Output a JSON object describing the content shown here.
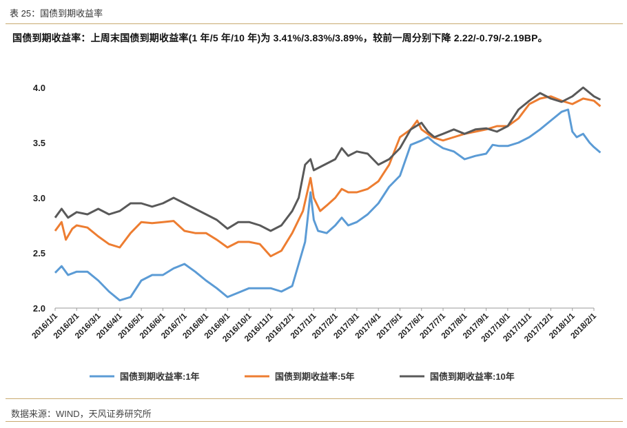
{
  "caption": "表 25：国债到期收益率",
  "headline": "国债到期收益率：上周末国债到期收益率(1 年/5 年/10 年)为 3.41%/3.83%/3.89%，较前一周分别下降 2.22/-0.79/-2.19BP。",
  "source": "数据来源：WIND，天风证券研究所",
  "chart_data": {
    "type": "line",
    "title": "",
    "xlabel": "",
    "ylabel": "",
    "ylim": [
      2.0,
      4.0
    ],
    "yticks": [
      "2.0",
      "2.5",
      "3.0",
      "3.5",
      "4.0"
    ],
    "x_categories": [
      "2016/1/1",
      "2016/2/1",
      "2016/3/1",
      "2016/4/1",
      "2016/5/1",
      "2016/6/1",
      "2016/7/1",
      "2016/8/1",
      "2016/9/1",
      "2016/10/1",
      "2016/11/1",
      "2016/12/1",
      "2017/1/1",
      "2017/2/1",
      "2017/3/1",
      "2017/4/1",
      "2017/5/1",
      "2017/6/1",
      "2017/7/1",
      "2017/8/1",
      "2017/9/1",
      "2017/10/1",
      "2017/11/1",
      "2017/12/1",
      "2018/1/1",
      "2018/2/1"
    ],
    "grid": false,
    "legend_position": "bottom",
    "series": [
      {
        "name": "国债到期收益率:1年",
        "color": "#5b9bd5",
        "points": [
          [
            0,
            2.32
          ],
          [
            0.3,
            2.38
          ],
          [
            0.6,
            2.3
          ],
          [
            1,
            2.33
          ],
          [
            1.5,
            2.33
          ],
          [
            2,
            2.25
          ],
          [
            2.5,
            2.15
          ],
          [
            3,
            2.07
          ],
          [
            3.5,
            2.1
          ],
          [
            4,
            2.25
          ],
          [
            4.5,
            2.3
          ],
          [
            5,
            2.3
          ],
          [
            5.5,
            2.36
          ],
          [
            6,
            2.4
          ],
          [
            6.5,
            2.33
          ],
          [
            7,
            2.25
          ],
          [
            7.5,
            2.18
          ],
          [
            8,
            2.1
          ],
          [
            8.5,
            2.14
          ],
          [
            9,
            2.18
          ],
          [
            9.5,
            2.18
          ],
          [
            10,
            2.18
          ],
          [
            10.5,
            2.15
          ],
          [
            11,
            2.2
          ],
          [
            11.3,
            2.4
          ],
          [
            11.6,
            2.6
          ],
          [
            11.85,
            3.05
          ],
          [
            12,
            2.8
          ],
          [
            12.2,
            2.7
          ],
          [
            12.6,
            2.68
          ],
          [
            13,
            2.75
          ],
          [
            13.3,
            2.82
          ],
          [
            13.6,
            2.75
          ],
          [
            14,
            2.78
          ],
          [
            14.5,
            2.85
          ],
          [
            15,
            2.95
          ],
          [
            15.5,
            3.1
          ],
          [
            16,
            3.2
          ],
          [
            16.5,
            3.48
          ],
          [
            17,
            3.52
          ],
          [
            17.3,
            3.55
          ],
          [
            17.6,
            3.5
          ],
          [
            18,
            3.45
          ],
          [
            18.5,
            3.42
          ],
          [
            19,
            3.35
          ],
          [
            19.5,
            3.38
          ],
          [
            20,
            3.4
          ],
          [
            20.3,
            3.48
          ],
          [
            20.6,
            3.47
          ],
          [
            21,
            3.47
          ],
          [
            21.5,
            3.5
          ],
          [
            22,
            3.55
          ],
          [
            22.5,
            3.62
          ],
          [
            23,
            3.7
          ],
          [
            23.5,
            3.78
          ],
          [
            23.8,
            3.8
          ],
          [
            24,
            3.6
          ],
          [
            24.2,
            3.55
          ],
          [
            24.5,
            3.58
          ],
          [
            24.8,
            3.5
          ],
          [
            25,
            3.46
          ],
          [
            25.3,
            3.41
          ]
        ]
      },
      {
        "name": "国债到期收益率:5年",
        "color": "#ed7d31",
        "points": [
          [
            0,
            2.7
          ],
          [
            0.3,
            2.78
          ],
          [
            0.5,
            2.62
          ],
          [
            0.8,
            2.72
          ],
          [
            1,
            2.75
          ],
          [
            1.5,
            2.73
          ],
          [
            2,
            2.65
          ],
          [
            2.5,
            2.58
          ],
          [
            3,
            2.55
          ],
          [
            3.5,
            2.68
          ],
          [
            4,
            2.78
          ],
          [
            4.5,
            2.77
          ],
          [
            5,
            2.78
          ],
          [
            5.5,
            2.79
          ],
          [
            6,
            2.7
          ],
          [
            6.5,
            2.68
          ],
          [
            7,
            2.68
          ],
          [
            7.5,
            2.62
          ],
          [
            8,
            2.55
          ],
          [
            8.5,
            2.6
          ],
          [
            9,
            2.6
          ],
          [
            9.5,
            2.58
          ],
          [
            10,
            2.47
          ],
          [
            10.5,
            2.52
          ],
          [
            11,
            2.68
          ],
          [
            11.5,
            2.88
          ],
          [
            11.85,
            3.18
          ],
          [
            12,
            3.0
          ],
          [
            12.3,
            2.88
          ],
          [
            12.6,
            2.93
          ],
          [
            13,
            3.0
          ],
          [
            13.3,
            3.08
          ],
          [
            13.6,
            3.05
          ],
          [
            14,
            3.05
          ],
          [
            14.5,
            3.08
          ],
          [
            15,
            3.15
          ],
          [
            15.5,
            3.3
          ],
          [
            16,
            3.55
          ],
          [
            16.5,
            3.62
          ],
          [
            16.8,
            3.7
          ],
          [
            17,
            3.62
          ],
          [
            17.5,
            3.55
          ],
          [
            18,
            3.52
          ],
          [
            18.5,
            3.55
          ],
          [
            19,
            3.58
          ],
          [
            19.5,
            3.6
          ],
          [
            20,
            3.62
          ],
          [
            20.5,
            3.65
          ],
          [
            21,
            3.65
          ],
          [
            21.5,
            3.72
          ],
          [
            22,
            3.85
          ],
          [
            22.5,
            3.9
          ],
          [
            23,
            3.92
          ],
          [
            23.5,
            3.88
          ],
          [
            24,
            3.85
          ],
          [
            24.5,
            3.9
          ],
          [
            25,
            3.88
          ],
          [
            25.3,
            3.83
          ]
        ]
      },
      {
        "name": "国债到期收益率:10年",
        "color": "#595959",
        "points": [
          [
            0,
            2.82
          ],
          [
            0.3,
            2.9
          ],
          [
            0.6,
            2.82
          ],
          [
            1,
            2.87
          ],
          [
            1.5,
            2.85
          ],
          [
            2,
            2.9
          ],
          [
            2.5,
            2.85
          ],
          [
            3,
            2.88
          ],
          [
            3.5,
            2.95
          ],
          [
            4,
            2.95
          ],
          [
            4.5,
            2.92
          ],
          [
            5,
            2.95
          ],
          [
            5.5,
            3.0
          ],
          [
            6,
            2.95
          ],
          [
            6.5,
            2.9
          ],
          [
            7,
            2.85
          ],
          [
            7.5,
            2.8
          ],
          [
            8,
            2.72
          ],
          [
            8.5,
            2.78
          ],
          [
            9,
            2.78
          ],
          [
            9.5,
            2.75
          ],
          [
            10,
            2.7
          ],
          [
            10.5,
            2.75
          ],
          [
            11,
            2.88
          ],
          [
            11.3,
            3.0
          ],
          [
            11.6,
            3.3
          ],
          [
            11.85,
            3.35
          ],
          [
            12,
            3.25
          ],
          [
            12.5,
            3.3
          ],
          [
            13,
            3.35
          ],
          [
            13.3,
            3.45
          ],
          [
            13.6,
            3.38
          ],
          [
            14,
            3.42
          ],
          [
            14.5,
            3.4
          ],
          [
            15,
            3.3
          ],
          [
            15.5,
            3.35
          ],
          [
            16,
            3.45
          ],
          [
            16.5,
            3.62
          ],
          [
            17,
            3.68
          ],
          [
            17.3,
            3.6
          ],
          [
            17.6,
            3.55
          ],
          [
            18,
            3.58
          ],
          [
            18.5,
            3.62
          ],
          [
            19,
            3.58
          ],
          [
            19.5,
            3.62
          ],
          [
            20,
            3.63
          ],
          [
            20.5,
            3.6
          ],
          [
            21,
            3.65
          ],
          [
            21.5,
            3.8
          ],
          [
            22,
            3.88
          ],
          [
            22.5,
            3.95
          ],
          [
            23,
            3.9
          ],
          [
            23.5,
            3.87
          ],
          [
            24,
            3.92
          ],
          [
            24.5,
            4.0
          ],
          [
            25,
            3.92
          ],
          [
            25.3,
            3.89
          ]
        ]
      }
    ]
  }
}
